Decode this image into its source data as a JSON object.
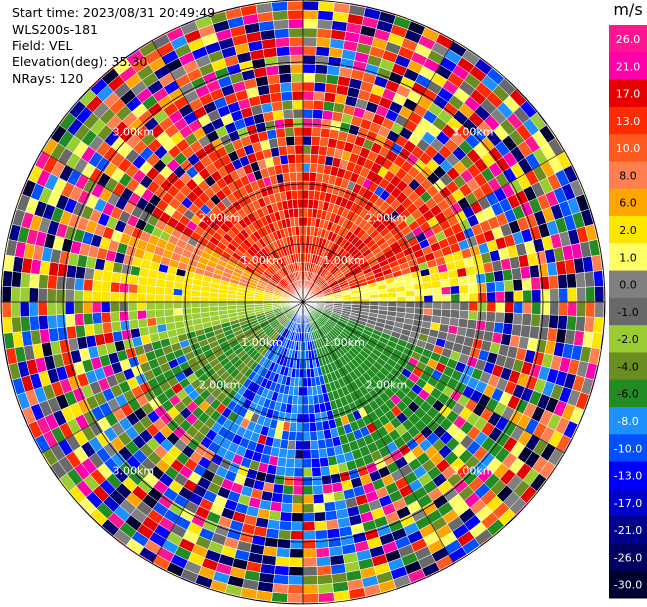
{
  "info": {
    "start_time": "Start time: 2023/08/31 20:49:49",
    "station": "WLS200s-181",
    "field": "Field: VEL",
    "elevation": "Elevation(deg): 35.30",
    "nrays": "NRays: 120"
  },
  "chart_data": {
    "type": "heatmap",
    "projection": "polar-ppi",
    "field": "VEL",
    "n_rays": 120,
    "range_rings_km": [
      1,
      2,
      3
    ],
    "ring_labels": [
      "1.00km",
      "2.00km",
      "3.00km"
    ],
    "colorbar": {
      "unit": "m/s",
      "tick_labels": [
        "26.0",
        "21.0",
        "17.0",
        "13.0",
        "10.0",
        "8.0",
        "6.0",
        "2.0",
        "1.0",
        "0.0",
        "-1.0",
        "-2.0",
        "-4.0",
        "-6.0",
        "-8.0",
        "-10.0",
        "-13.0",
        "-17.0",
        "-21.0",
        "-26.0",
        "-30.0"
      ],
      "colors": [
        "#ff1493",
        "#ff00aa",
        "#e60000",
        "#ff2a00",
        "#ff5a1e",
        "#ff7f50",
        "#ffa500",
        "#ffe600",
        "#ffff66",
        "#808080",
        "#696969",
        "#9acd32",
        "#6b8e23",
        "#228b22",
        "#1e90ff",
        "#0050ff",
        "#0000ff",
        "#0000cd",
        "#00008b",
        "#000060",
        "#000030"
      ]
    }
  }
}
